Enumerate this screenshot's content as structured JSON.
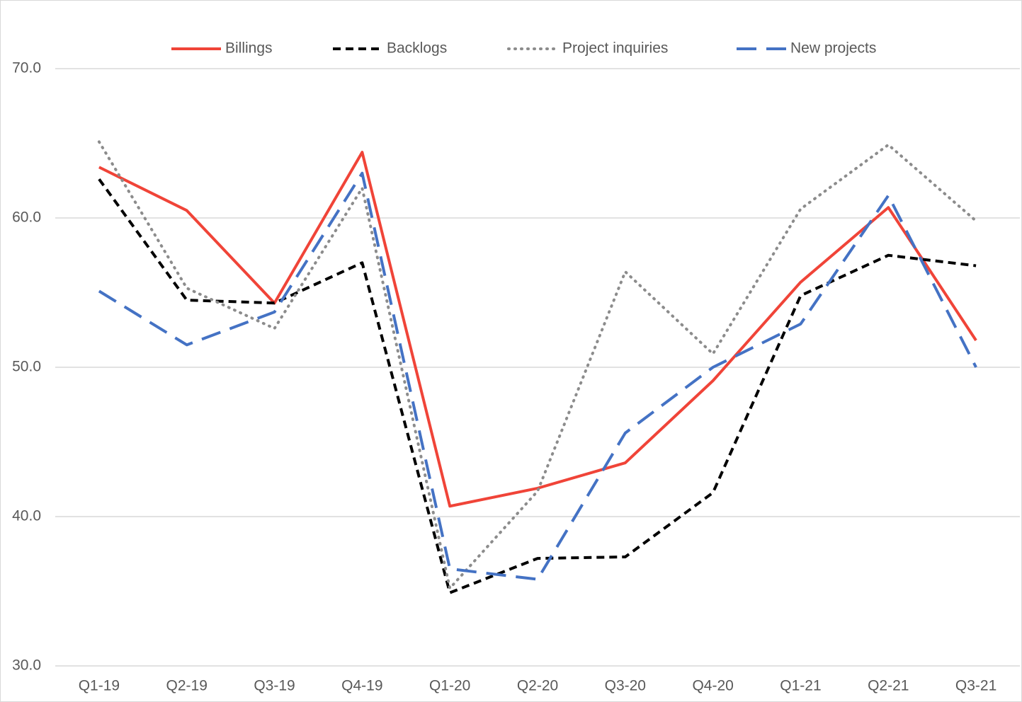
{
  "chart_data": {
    "type": "line",
    "categories": [
      "Q1-19",
      "Q2-19",
      "Q3-19",
      "Q4-19",
      "Q1-20",
      "Q2-20",
      "Q3-20",
      "Q4-20",
      "Q1-21",
      "Q2-21",
      "Q3-21"
    ],
    "series": [
      {
        "name": "Billings",
        "color": "#f04438",
        "style": "solid",
        "values": [
          63.4,
          60.5,
          54.3,
          64.4,
          40.7,
          41.9,
          43.6,
          49.1,
          55.7,
          60.7,
          51.8
        ]
      },
      {
        "name": "Backlogs",
        "color": "#000000",
        "style": "dashed",
        "values": [
          62.6,
          54.5,
          54.3,
          57.0,
          34.9,
          37.2,
          37.3,
          41.6,
          54.8,
          57.5,
          56.8
        ]
      },
      {
        "name": "Project inquiries",
        "color": "#8c8c8c",
        "style": "dotted",
        "values": [
          65.1,
          55.3,
          52.6,
          62.0,
          35.2,
          41.7,
          56.4,
          50.9,
          60.6,
          64.9,
          59.8
        ]
      },
      {
        "name": "New projects",
        "color": "#4472c4",
        "style": "long-dash",
        "values": [
          55.1,
          51.5,
          53.7,
          63.0,
          36.5,
          35.8,
          45.6,
          50.0,
          52.9,
          61.5,
          50.0
        ]
      }
    ],
    "ylim": [
      30,
      70
    ],
    "yticks": [
      {
        "value": 30,
        "label": "30.0"
      },
      {
        "value": 40,
        "label": "40.0"
      },
      {
        "value": 50,
        "label": "50.0"
      },
      {
        "value": 60,
        "label": "60.0"
      },
      {
        "value": 70,
        "label": "70.0"
      }
    ],
    "grid": true,
    "legend": "top"
  }
}
